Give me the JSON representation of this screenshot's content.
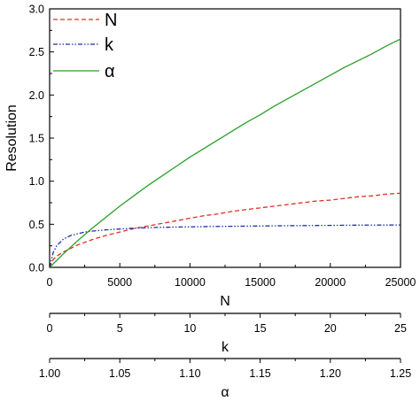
{
  "chart_data": {
    "type": "line",
    "title": "",
    "ylabel": "Resolution",
    "ylim": [
      0,
      3.0
    ],
    "y_ticks": [
      "0.0",
      "0.5",
      "1.0",
      "1.5",
      "2.0",
      "2.5",
      "3.0"
    ],
    "grid": false,
    "legend_position": "top-left",
    "x_axes": [
      {
        "label": "N",
        "range": [
          0,
          25000
        ],
        "ticks": [
          "0",
          "5000",
          "10000",
          "15000",
          "20000",
          "25000"
        ]
      },
      {
        "label": "k",
        "range": [
          0,
          25
        ],
        "ticks": [
          "0",
          "5",
          "10",
          "15",
          "20",
          "25"
        ]
      },
      {
        "label": "α",
        "range": [
          1.0,
          1.25
        ],
        "ticks": [
          "1.00",
          "1.05",
          "1.10",
          "1.15",
          "1.20",
          "1.25"
        ]
      }
    ],
    "series": [
      {
        "name": "N",
        "color": "#e03020",
        "dash": "dashed",
        "x": [
          0,
          250,
          500,
          1000,
          2000,
          3000,
          4000,
          5000,
          6000,
          7000,
          8000,
          9000,
          10000,
          11000,
          12000,
          13000,
          14000,
          15000,
          16000,
          17000,
          18000,
          19000,
          20000,
          21000,
          22000,
          23000,
          24000,
          25000
        ],
        "y": [
          0,
          0.09,
          0.13,
          0.18,
          0.26,
          0.32,
          0.37,
          0.41,
          0.45,
          0.48,
          0.51,
          0.54,
          0.57,
          0.6,
          0.62,
          0.65,
          0.67,
          0.69,
          0.71,
          0.73,
          0.75,
          0.77,
          0.78,
          0.8,
          0.82,
          0.83,
          0.85,
          0.86
        ]
      },
      {
        "name": "k",
        "color": "#1f2fa8",
        "dash": "dash-dot-dot",
        "x": [
          0,
          250,
          500,
          1000,
          1500,
          2000,
          2500,
          3000,
          4000,
          5000,
          6000,
          7000,
          8000,
          10000,
          12000,
          15000,
          18000,
          20000,
          22000,
          25000
        ],
        "y": [
          0,
          0.17,
          0.25,
          0.33,
          0.37,
          0.39,
          0.41,
          0.42,
          0.435,
          0.445,
          0.455,
          0.46,
          0.465,
          0.47,
          0.475,
          0.48,
          0.485,
          0.487,
          0.49,
          0.492
        ]
      },
      {
        "name": "α",
        "color": "#2aa02a",
        "dash": "solid",
        "x": [
          0,
          1000,
          2000,
          3000,
          4000,
          5000,
          6000,
          7000,
          8000,
          9000,
          10000,
          11000,
          12000,
          13000,
          14000,
          15000,
          16000,
          17000,
          18000,
          19000,
          20000,
          21000,
          22000,
          23000,
          24000,
          25000
        ],
        "y": [
          0,
          0.16,
          0.31,
          0.45,
          0.58,
          0.71,
          0.83,
          0.95,
          1.06,
          1.17,
          1.28,
          1.38,
          1.48,
          1.58,
          1.68,
          1.77,
          1.87,
          1.96,
          2.05,
          2.14,
          2.23,
          2.32,
          2.4,
          2.48,
          2.57,
          2.65
        ]
      }
    ]
  }
}
